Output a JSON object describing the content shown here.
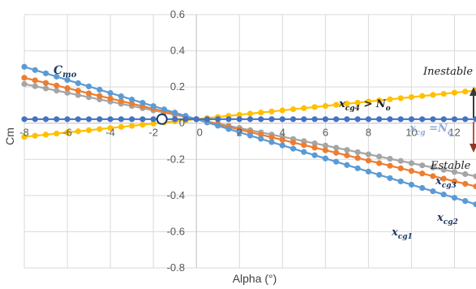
{
  "chart_data": {
    "type": "line",
    "title": "",
    "xlabel": "Alpha (°)",
    "ylabel": "Cm",
    "xlim": [
      -8,
      13
    ],
    "ylim": [
      -0.8,
      0.6
    ],
    "x_ticks": [
      -8,
      -6,
      -4,
      -2,
      0,
      2,
      4,
      6,
      8,
      10,
      12
    ],
    "y_ticks": [
      0.6,
      0.4,
      0.2,
      0,
      -0.2,
      -0.4,
      -0.6,
      -0.8
    ],
    "grid": true,
    "x_step": 0.5,
    "colors": {
      "xcg1": "#5b9bd5",
      "xcg2": "#ed7d31",
      "xcg3": "#a5a5a5",
      "xcg4": "#ffc000",
      "xcg_no": "#4472c4",
      "point": "#1f3864",
      "arrow_up": "#3b3b3b",
      "arrow_down": "#c0504d"
    },
    "series": [
      {
        "key": "xcg1",
        "intercept": 0.022,
        "slope": -0.0362
      },
      {
        "key": "xcg2",
        "intercept": 0.022,
        "slope": -0.0286
      },
      {
        "key": "xcg3",
        "intercept": 0.022,
        "slope": -0.0243
      },
      {
        "key": "xcg4",
        "intercept": 0.022,
        "slope": 0.0122
      },
      {
        "key": "xcg_no",
        "intercept": 0.022,
        "slope": 0.0
      }
    ],
    "neutral_point": {
      "x": -1.6,
      "y": 0.022
    },
    "annotations": {
      "cmo_base": "C",
      "cmo_sub": "mo",
      "xcg4_base": "x",
      "xcg4_sub": "cg4",
      "xcg4_rest": " > N",
      "xcg4_sub2": "o",
      "xcgno_base": "x",
      "xcgno_sub": "cg",
      "xcgno_rest": " =N",
      "xcgno_sub2": "o",
      "inestable": "Inestable",
      "estable": "Estable",
      "xcg3_base": "x",
      "xcg3_sub": "cg3",
      "xcg2_base": "x",
      "xcg2_sub": "cg2",
      "xcg1_base": "x",
      "xcg1_sub": "cg1"
    }
  }
}
